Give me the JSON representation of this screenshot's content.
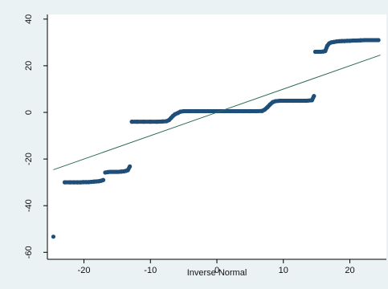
{
  "chart_data": {
    "type": "scatter",
    "title": "",
    "xlabel": "Inverse Normal",
    "ylabel": "",
    "xlim": [
      -25.5,
      25.5
    ],
    "ylim": [
      -63,
      42
    ],
    "xticks": [
      -20,
      -10,
      0,
      10,
      20
    ],
    "yticks": [
      -60,
      -40,
      -20,
      0,
      20,
      40
    ],
    "xtick_labels": [
      "-20",
      "-10",
      "0",
      "10",
      "20"
    ],
    "ytick_labels": [
      "-60",
      "-40",
      "-20",
      "0",
      "20",
      "40"
    ],
    "grid": false,
    "legend": "none",
    "series": [
      {
        "kind": "points",
        "color": "#1f4e79",
        "points": [
          [
            -24.6,
            -53.3
          ],
          [
            -22.9,
            -30.0
          ],
          [
            -22.1,
            -30.0
          ],
          [
            -21.5,
            -30.0
          ],
          [
            -21.0,
            -30.0
          ],
          [
            -20.5,
            -30.0
          ],
          [
            -20.1,
            -29.9
          ],
          [
            -19.7,
            -29.9
          ],
          [
            -19.3,
            -29.9
          ],
          [
            -18.9,
            -29.8
          ],
          [
            -18.5,
            -29.7
          ],
          [
            -18.1,
            -29.6
          ],
          [
            -17.7,
            -29.5
          ],
          [
            -17.4,
            -29.3
          ],
          [
            -17.1,
            -29.0
          ],
          [
            -16.8,
            -25.8
          ],
          [
            -16.4,
            -25.6
          ],
          [
            -16.0,
            -25.5
          ],
          [
            -15.6,
            -25.5
          ],
          [
            -15.2,
            -25.5
          ],
          [
            -14.8,
            -25.5
          ],
          [
            -14.4,
            -25.4
          ],
          [
            -14.0,
            -25.3
          ],
          [
            -13.7,
            -25.1
          ],
          [
            -13.4,
            -24.8
          ],
          [
            -13.1,
            -23.2
          ],
          [
            -12.8,
            -4.0
          ],
          [
            -12.0,
            -4.0
          ],
          [
            -11.0,
            -4.0
          ],
          [
            -10.0,
            -4.0
          ],
          [
            -9.0,
            -4.0
          ],
          [
            -8.2,
            -3.9
          ],
          [
            -7.6,
            -3.8
          ],
          [
            -7.2,
            -3.3
          ],
          [
            -6.9,
            -2.4
          ],
          [
            -6.6,
            -1.5
          ],
          [
            -6.3,
            -0.8
          ],
          [
            -5.9,
            -0.3
          ],
          [
            -5.5,
            0.3
          ],
          [
            -5.0,
            0.5
          ],
          [
            -4.0,
            0.5
          ],
          [
            -3.0,
            0.5
          ],
          [
            -2.0,
            0.5
          ],
          [
            -1.0,
            0.5
          ],
          [
            0.0,
            0.5
          ],
          [
            1.0,
            0.5
          ],
          [
            2.0,
            0.5
          ],
          [
            3.0,
            0.5
          ],
          [
            4.0,
            0.5
          ],
          [
            5.0,
            0.5
          ],
          [
            6.0,
            0.5
          ],
          [
            6.8,
            0.6
          ],
          [
            7.2,
            1.2
          ],
          [
            7.6,
            2.2
          ],
          [
            8.0,
            3.4
          ],
          [
            8.4,
            4.4
          ],
          [
            8.8,
            4.8
          ],
          [
            9.5,
            5.0
          ],
          [
            10.5,
            5.0
          ],
          [
            11.5,
            5.0
          ],
          [
            12.5,
            5.0
          ],
          [
            13.5,
            5.0
          ],
          [
            14.3,
            5.2
          ],
          [
            14.6,
            7.0
          ],
          [
            14.8,
            26.0
          ],
          [
            15.2,
            26.0
          ],
          [
            15.6,
            26.0
          ],
          [
            16.0,
            26.1
          ],
          [
            16.3,
            26.3
          ],
          [
            16.6,
            28.5
          ],
          [
            16.9,
            29.6
          ],
          [
            17.2,
            30.0
          ],
          [
            17.6,
            30.2
          ],
          [
            18.0,
            30.4
          ],
          [
            18.4,
            30.5
          ],
          [
            18.8,
            30.6
          ],
          [
            19.2,
            30.6
          ],
          [
            19.6,
            30.7
          ],
          [
            20.0,
            30.7
          ],
          [
            20.5,
            30.8
          ],
          [
            21.0,
            30.8
          ],
          [
            21.6,
            30.9
          ],
          [
            22.3,
            31.0
          ],
          [
            23.1,
            31.0
          ],
          [
            24.3,
            31.0
          ]
        ]
      },
      {
        "kind": "line",
        "color": "#2e6e4f",
        "points": [
          [
            -24.6,
            -24.6
          ],
          [
            24.6,
            24.6
          ]
        ]
      }
    ]
  }
}
